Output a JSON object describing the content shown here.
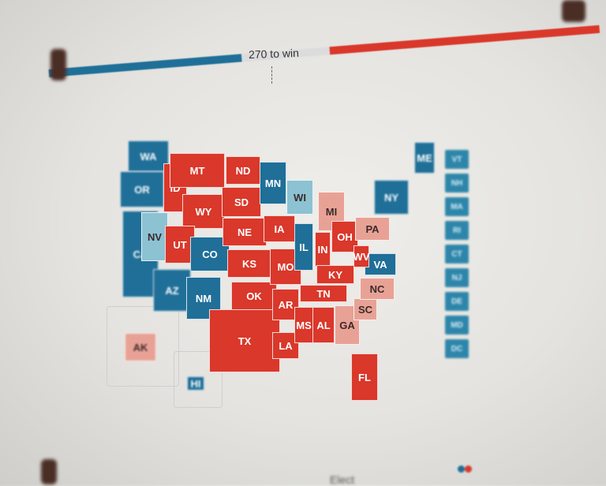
{
  "header": {
    "win_label": "270 to win",
    "bar": {
      "dem_fraction": 0.35,
      "undecided_fraction": 0.16,
      "rep_fraction": 0.49
    }
  },
  "colors": {
    "rep": "#d9382b",
    "dem": "#1f6f98",
    "lean_dem": "#8cc2d2",
    "lean_rep": "#e8a295",
    "undecided": "#dcdcdc"
  },
  "states": [
    {
      "abbr": "WA",
      "status": "dem"
    },
    {
      "abbr": "OR",
      "status": "dem"
    },
    {
      "abbr": "CA",
      "status": "dem"
    },
    {
      "abbr": "NV",
      "status": "lean_dem"
    },
    {
      "abbr": "ID",
      "status": "rep"
    },
    {
      "abbr": "MT",
      "status": "rep"
    },
    {
      "abbr": "WY",
      "status": "rep"
    },
    {
      "abbr": "UT",
      "status": "rep"
    },
    {
      "abbr": "CO",
      "status": "dem"
    },
    {
      "abbr": "AZ",
      "status": "dem"
    },
    {
      "abbr": "NM",
      "status": "dem"
    },
    {
      "abbr": "ND",
      "status": "rep"
    },
    {
      "abbr": "SD",
      "status": "rep"
    },
    {
      "abbr": "NE",
      "status": "rep"
    },
    {
      "abbr": "KS",
      "status": "rep"
    },
    {
      "abbr": "OK",
      "status": "rep"
    },
    {
      "abbr": "TX",
      "status": "rep"
    },
    {
      "abbr": "MN",
      "status": "dem"
    },
    {
      "abbr": "IA",
      "status": "rep"
    },
    {
      "abbr": "MO",
      "status": "rep"
    },
    {
      "abbr": "AR",
      "status": "rep"
    },
    {
      "abbr": "LA",
      "status": "rep"
    },
    {
      "abbr": "WI",
      "status": "lean_dem"
    },
    {
      "abbr": "IL",
      "status": "dem"
    },
    {
      "abbr": "MI",
      "status": "lean_rep"
    },
    {
      "abbr": "IN",
      "status": "rep"
    },
    {
      "abbr": "OH",
      "status": "rep"
    },
    {
      "abbr": "KY",
      "status": "rep"
    },
    {
      "abbr": "TN",
      "status": "rep"
    },
    {
      "abbr": "MS",
      "status": "rep"
    },
    {
      "abbr": "AL",
      "status": "rep"
    },
    {
      "abbr": "GA",
      "status": "lean_rep"
    },
    {
      "abbr": "FL",
      "status": "rep"
    },
    {
      "abbr": "SC",
      "status": "lean_rep"
    },
    {
      "abbr": "NC",
      "status": "lean_rep"
    },
    {
      "abbr": "VA",
      "status": "dem"
    },
    {
      "abbr": "WV",
      "status": "rep"
    },
    {
      "abbr": "PA",
      "status": "lean_rep"
    },
    {
      "abbr": "NY",
      "status": "dem"
    },
    {
      "abbr": "ME",
      "status": "dem"
    },
    {
      "abbr": "AK",
      "status": "lean_rep"
    },
    {
      "abbr": "HI",
      "status": "dem"
    }
  ],
  "northeast_boxes": [
    "VT",
    "NH",
    "MA",
    "RI",
    "CT",
    "NJ",
    "DE",
    "MD",
    "DC"
  ],
  "footer": {
    "label": "Elect"
  }
}
